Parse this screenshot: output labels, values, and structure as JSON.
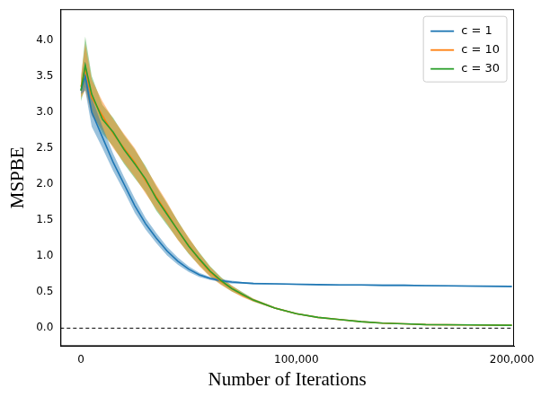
{
  "chart_data": {
    "type": "line",
    "x_label": "Number of Iterations",
    "y_label": "MSPBE",
    "x": [
      0,
      2000,
      5000,
      10000,
      15000,
      20000,
      25000,
      30000,
      35000,
      40000,
      45000,
      50000,
      55000,
      60000,
      65000,
      70000,
      75000,
      80000,
      90000,
      100000,
      110000,
      120000,
      130000,
      140000,
      150000,
      160000,
      180000,
      200000
    ],
    "xlim": [
      -9500,
      201000
    ],
    "xticks": [
      0,
      {
        "value": 100000,
        "label": "100,000"
      },
      {
        "value": 200000,
        "label": "200,000"
      }
    ],
    "ylim": [
      -0.25,
      4.43
    ],
    "yticks": [
      {
        "value": 0,
        "label": "0.0"
      },
      {
        "value": 0.5,
        "label": "0.5"
      },
      {
        "value": 1,
        "label": "1.0"
      },
      {
        "value": 1.5,
        "label": "1.5"
      },
      {
        "value": 2,
        "label": "2.0"
      },
      {
        "value": 2.5,
        "label": "2.5"
      },
      {
        "value": 3,
        "label": "3.0"
      },
      {
        "value": 3.5,
        "label": "3.5"
      },
      {
        "value": 4,
        "label": "4.0"
      }
    ],
    "grid": false,
    "legend": "upper right",
    "hlines": [
      {
        "y": 0,
        "color": "#000000",
        "line_style": "dashed"
      }
    ],
    "series": [
      {
        "name": "c = 1",
        "color": "#1f77b4",
        "values": [
          3.3,
          3.5,
          3.0,
          2.65,
          2.3,
          2.0,
          1.7,
          1.45,
          1.25,
          1.07,
          0.93,
          0.82,
          0.74,
          0.69,
          0.66,
          0.64,
          0.63,
          0.62,
          0.615,
          0.61,
          0.605,
          0.6,
          0.6,
          0.595,
          0.595,
          0.59,
          0.585,
          0.58
        ],
        "lower": [
          3.25,
          3.3,
          2.8,
          2.5,
          2.18,
          1.9,
          1.6,
          1.37,
          1.18,
          1.01,
          0.88,
          0.78,
          0.71,
          0.67,
          0.64,
          0.62,
          0.62,
          0.61,
          0.605,
          0.6,
          0.595,
          0.59,
          0.59,
          0.585,
          0.585,
          0.58,
          0.575,
          0.57
        ],
        "upper": [
          3.35,
          3.7,
          3.2,
          2.8,
          2.42,
          2.1,
          1.8,
          1.53,
          1.32,
          1.13,
          0.98,
          0.86,
          0.77,
          0.71,
          0.68,
          0.66,
          0.64,
          0.63,
          0.625,
          0.62,
          0.615,
          0.61,
          0.61,
          0.605,
          0.605,
          0.6,
          0.595,
          0.59
        ]
      },
      {
        "name": "c = 10",
        "color": "#ff7f0e",
        "values": [
          3.35,
          3.6,
          3.2,
          2.95,
          2.7,
          2.5,
          2.3,
          2.05,
          1.82,
          1.6,
          1.35,
          1.15,
          0.95,
          0.78,
          0.65,
          0.55,
          0.46,
          0.39,
          0.28,
          0.2,
          0.15,
          0.12,
          0.09,
          0.07,
          0.06,
          0.05,
          0.045,
          0.04
        ],
        "lower": [
          3.2,
          3.3,
          2.95,
          2.75,
          2.5,
          2.3,
          2.1,
          1.87,
          1.65,
          1.45,
          1.22,
          1.04,
          0.86,
          0.71,
          0.6,
          0.51,
          0.43,
          0.37,
          0.27,
          0.19,
          0.145,
          0.115,
          0.087,
          0.067,
          0.057,
          0.047,
          0.042,
          0.037
        ],
        "upper": [
          3.5,
          3.95,
          3.45,
          3.15,
          2.9,
          2.7,
          2.5,
          2.23,
          1.99,
          1.75,
          1.48,
          1.26,
          1.04,
          0.85,
          0.7,
          0.59,
          0.49,
          0.41,
          0.29,
          0.21,
          0.155,
          0.125,
          0.093,
          0.073,
          0.063,
          0.053,
          0.048,
          0.043
        ]
      },
      {
        "name": "c = 30",
        "color": "#2ca02c",
        "values": [
          3.3,
          3.65,
          3.25,
          2.9,
          2.72,
          2.48,
          2.28,
          2.07,
          1.8,
          1.58,
          1.36,
          1.14,
          0.96,
          0.79,
          0.66,
          0.55,
          0.47,
          0.39,
          0.28,
          0.2,
          0.15,
          0.12,
          0.09,
          0.07,
          0.06,
          0.05,
          0.045,
          0.04
        ],
        "lower": [
          3.15,
          3.35,
          3.0,
          2.7,
          2.52,
          2.28,
          2.08,
          1.89,
          1.63,
          1.43,
          1.23,
          1.03,
          0.87,
          0.72,
          0.61,
          0.51,
          0.44,
          0.37,
          0.27,
          0.19,
          0.145,
          0.115,
          0.087,
          0.067,
          0.057,
          0.047,
          0.042,
          0.037
        ],
        "upper": [
          3.45,
          4.05,
          3.5,
          3.1,
          2.92,
          2.68,
          2.48,
          2.25,
          1.97,
          1.73,
          1.49,
          1.25,
          1.05,
          0.86,
          0.71,
          0.59,
          0.5,
          0.41,
          0.29,
          0.21,
          0.155,
          0.125,
          0.093,
          0.073,
          0.063,
          0.053,
          0.048,
          0.043
        ]
      }
    ]
  }
}
